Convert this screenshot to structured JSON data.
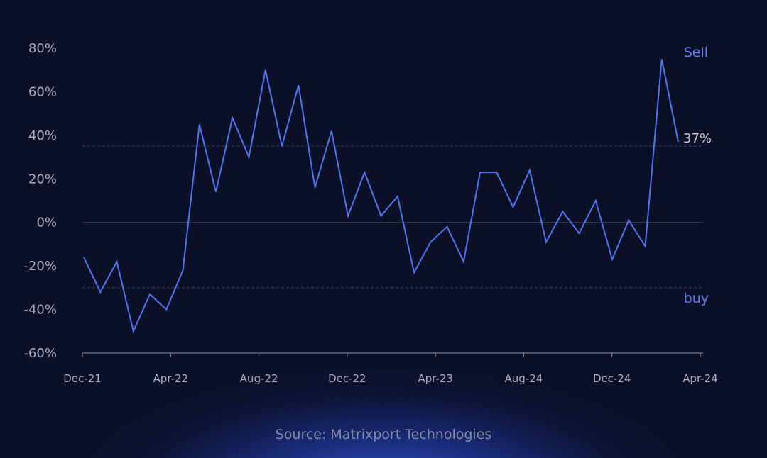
{
  "chart_data": {
    "type": "line",
    "title": "",
    "xlabel": "",
    "ylabel": "",
    "y_ticks": [
      "80%",
      "60%",
      "40%",
      "20%",
      "0%",
      "-20%",
      "-40%",
      "-60%"
    ],
    "y_tick_values": [
      80,
      60,
      40,
      20,
      0,
      -20,
      -40,
      -60
    ],
    "ylim": [
      -60,
      80
    ],
    "x_ticks": [
      "Dec-21",
      "Apr-22",
      "Aug-22",
      "Dec-22",
      "Apr-23",
      "Aug-24",
      "Dec-24",
      "Apr-24"
    ],
    "thresholds": [
      {
        "label": "Sell",
        "value": 35
      },
      {
        "label": "buy",
        "value": -30
      }
    ],
    "end_label": "37%",
    "series": [
      {
        "color": "#4f74f0",
        "values": [
          -16,
          -32,
          -18,
          -50,
          -33,
          -40,
          -22,
          45,
          14,
          48,
          30,
          70,
          35,
          63,
          16,
          42,
          3,
          23,
          3,
          12,
          -23,
          -9,
          -2,
          -18,
          23,
          23,
          7,
          24,
          -9,
          5,
          -5,
          10,
          -17,
          1,
          -11,
          75,
          37
        ]
      }
    ],
    "grid": false,
    "source": "Source: Matrixport Technologies",
    "colors": {
      "background": "#0b1026",
      "line": "#4f74f0",
      "axis": "#8a90a8",
      "threshold": "#3a4158"
    }
  }
}
